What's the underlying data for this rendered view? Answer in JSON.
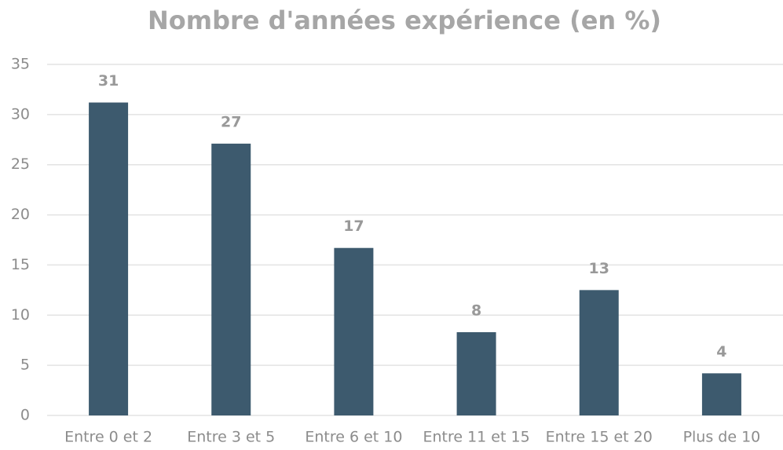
{
  "chart_data": {
    "type": "bar",
    "title": "Nombre d'années expérience (en %)",
    "categories": [
      "Entre 0 et 2",
      "Entre 3 et 5",
      "Entre 6 et 10",
      "Entre 11 et 15",
      "Entre 15 et 20",
      "Plus de 10"
    ],
    "values": [
      31.2,
      27.1,
      16.7,
      8.3,
      12.5,
      4.2
    ],
    "value_labels": [
      "31",
      "27",
      "17",
      "8",
      "13",
      "4"
    ],
    "color": "#3d5a6e",
    "ylim": [
      0,
      35
    ],
    "yticks": [
      0,
      5,
      10,
      15,
      20,
      25,
      30,
      35
    ],
    "grid": true
  }
}
